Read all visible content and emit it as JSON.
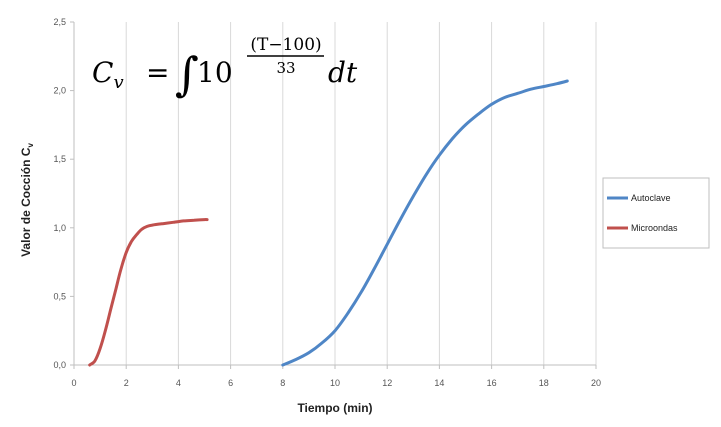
{
  "chart_data": {
    "type": "line",
    "xlabel": "Tiempo (min)",
    "ylabel": "Valor de Cocción C",
    "ylabel_sub": "v",
    "xlim": [
      0,
      20
    ],
    "ylim": [
      0,
      2.5
    ],
    "x_ticks": [
      "0",
      "2",
      "4",
      "6",
      "8",
      "10",
      "12",
      "14",
      "16",
      "18",
      "20"
    ],
    "y_ticks": [
      "0,0",
      "0,5",
      "1,0",
      "1,5",
      "2,0",
      "2,5"
    ],
    "grid": "vertical",
    "legend_position": "right",
    "series": [
      {
        "name": "Autoclave",
        "color": "#4f86c6",
        "x": [
          8.0,
          8.5,
          9.0,
          9.5,
          10.0,
          10.5,
          11.0,
          11.5,
          12.0,
          12.5,
          13.0,
          13.5,
          14.0,
          14.5,
          15.0,
          15.5,
          16.0,
          16.5,
          17.0,
          17.5,
          18.0,
          18.5,
          18.9
        ],
        "y": [
          0.0,
          0.04,
          0.09,
          0.16,
          0.25,
          0.38,
          0.53,
          0.7,
          0.88,
          1.06,
          1.23,
          1.39,
          1.53,
          1.65,
          1.75,
          1.83,
          1.9,
          1.95,
          1.98,
          2.01,
          2.03,
          2.05,
          2.07
        ]
      },
      {
        "name": "Microondas",
        "color": "#c0504d",
        "x": [
          0.6,
          0.8,
          1.0,
          1.2,
          1.4,
          1.6,
          1.8,
          2.0,
          2.2,
          2.4,
          2.6,
          2.8,
          3.0,
          3.4,
          3.8,
          4.2,
          4.6,
          5.0,
          5.1
        ],
        "y": [
          0.0,
          0.03,
          0.12,
          0.25,
          0.4,
          0.55,
          0.7,
          0.82,
          0.9,
          0.95,
          0.99,
          1.01,
          1.02,
          1.03,
          1.04,
          1.05,
          1.055,
          1.06,
          1.06
        ]
      }
    ]
  },
  "formula": {
    "lhs": "C",
    "lhs_sub": "v",
    "equals": "=",
    "integral": "∫",
    "base": "10",
    "exp_num": "(T−100)",
    "exp_den": "33",
    "dt": "dt"
  }
}
